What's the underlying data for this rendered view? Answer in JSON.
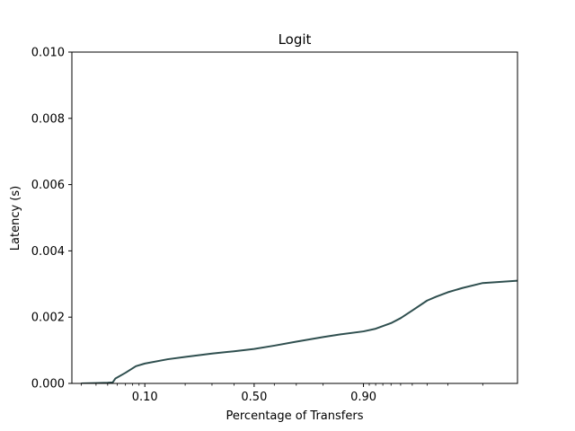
{
  "chart_data": {
    "type": "line",
    "title": "Logit",
    "xlabel": "Percentage of Transfers",
    "ylabel": "Latency (s)",
    "x_scale": "logit",
    "xlim": [
      0.025,
      0.995
    ],
    "ylim": [
      0,
      0.01
    ],
    "grid": false,
    "x_ticks": [
      0.1,
      0.5,
      0.9
    ],
    "x_tick_labels": [
      "0.10",
      "0.50",
      "0.90"
    ],
    "x_minor_ticks": [
      0.02,
      0.03,
      0.04,
      0.05,
      0.06,
      0.07,
      0.08,
      0.09,
      0.2,
      0.3,
      0.4,
      0.6,
      0.7,
      0.8,
      0.91,
      0.92,
      0.93,
      0.94,
      0.95,
      0.96,
      0.97,
      0.98,
      0.99
    ],
    "y_ticks": [
      0,
      0.002,
      0.004,
      0.006,
      0.008,
      0.01
    ],
    "y_tick_labels": [
      "0.000",
      "0.002",
      "0.004",
      "0.006",
      "0.008",
      "0.010"
    ],
    "series": [
      {
        "color": "#2f4f4f",
        "points": [
          [
            0.03,
            0.0
          ],
          [
            0.04,
            1e-05
          ],
          [
            0.05,
            2e-05
          ],
          [
            0.055,
            3e-05
          ],
          [
            0.058,
            0.00015
          ],
          [
            0.07,
            0.00032
          ],
          [
            0.085,
            0.00052
          ],
          [
            0.1,
            0.0006
          ],
          [
            0.15,
            0.00073
          ],
          [
            0.2,
            0.0008
          ],
          [
            0.3,
            0.0009
          ],
          [
            0.4,
            0.00097
          ],
          [
            0.5,
            0.00104
          ],
          [
            0.6,
            0.00114
          ],
          [
            0.7,
            0.00126
          ],
          [
            0.8,
            0.0014
          ],
          [
            0.85,
            0.00148
          ],
          [
            0.9,
            0.00157
          ],
          [
            0.92,
            0.00165
          ],
          [
            0.94,
            0.00182
          ],
          [
            0.95,
            0.00197
          ],
          [
            0.96,
            0.0022
          ],
          [
            0.97,
            0.0025
          ],
          [
            0.975,
            0.00262
          ],
          [
            0.98,
            0.00275
          ],
          [
            0.985,
            0.00288
          ],
          [
            0.99,
            0.00303
          ],
          [
            0.995,
            0.0031
          ]
        ]
      }
    ]
  }
}
